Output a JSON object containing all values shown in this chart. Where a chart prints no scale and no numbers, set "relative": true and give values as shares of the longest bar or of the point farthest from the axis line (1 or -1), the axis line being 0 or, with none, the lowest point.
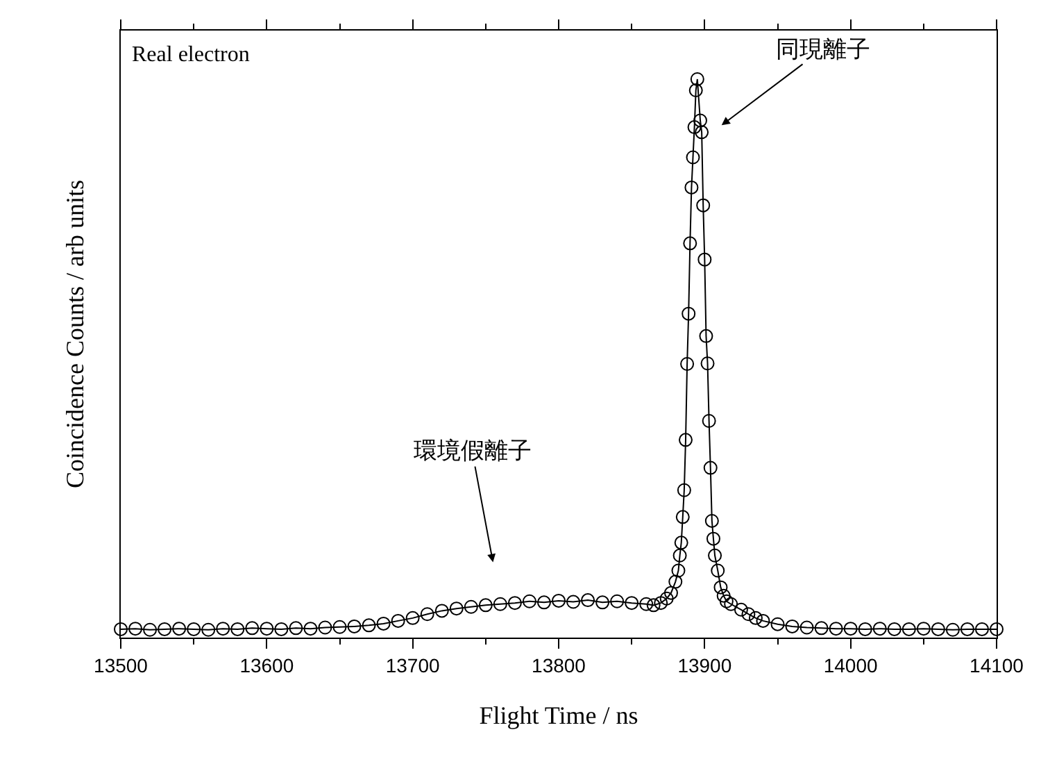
{
  "chart_data": {
    "type": "line",
    "relative": true,
    "xlabel": "Flight Time / ns",
    "ylabel": "Coincidence Counts / arb units",
    "xlim": [
      13500,
      14100
    ],
    "xticks": [
      13500,
      13600,
      13700,
      13800,
      13900,
      14000,
      14100
    ],
    "grid": false,
    "marker": "circle",
    "line_style": "solid",
    "annotations": [
      "Real electron",
      "同現離子",
      "環境假離子"
    ],
    "series": [
      {
        "color": "#000000",
        "x": [
          13500,
          13510,
          13520,
          13530,
          13540,
          13550,
          13560,
          13570,
          13580,
          13590,
          13600,
          13610,
          13620,
          13630,
          13640,
          13650,
          13660,
          13670,
          13680,
          13690,
          13700,
          13710,
          13720,
          13730,
          13740,
          13750,
          13760,
          13770,
          13780,
          13790,
          13800,
          13810,
          13820,
          13830,
          13840,
          13850,
          13860,
          13865,
          13870,
          13874,
          13877,
          13880,
          13882,
          13883,
          13884,
          13885,
          13886,
          13887,
          13888,
          13889,
          13890,
          13891,
          13892,
          13893,
          13894,
          13895,
          13897,
          13898,
          13899,
          13900,
          13901,
          13902,
          13903,
          13904,
          13905,
          13906,
          13907,
          13909,
          13911,
          13913,
          13915,
          13918,
          13925,
          13930,
          13935,
          13940,
          13950,
          13960,
          13970,
          13980,
          13990,
          14000,
          14010,
          14020,
          14030,
          14040,
          14050,
          14060,
          14070,
          14080,
          14090,
          14100
        ],
        "values": [
          0.015,
          0.016,
          0.014,
          0.015,
          0.016,
          0.015,
          0.014,
          0.016,
          0.015,
          0.017,
          0.016,
          0.015,
          0.017,
          0.016,
          0.018,
          0.019,
          0.02,
          0.022,
          0.025,
          0.03,
          0.035,
          0.042,
          0.048,
          0.052,
          0.055,
          0.058,
          0.06,
          0.062,
          0.065,
          0.063,
          0.066,
          0.064,
          0.067,
          0.063,
          0.065,
          0.062,
          0.06,
          0.058,
          0.062,
          0.07,
          0.08,
          0.1,
          0.12,
          0.147,
          0.17,
          0.216,
          0.264,
          0.354,
          0.49,
          0.58,
          0.706,
          0.806,
          0.86,
          0.914,
          0.98,
          1.0,
          0.926,
          0.905,
          0.774,
          0.677,
          0.54,
          0.491,
          0.388,
          0.304,
          0.209,
          0.177,
          0.147,
          0.12,
          0.09,
          0.075,
          0.065,
          0.06,
          0.05,
          0.042,
          0.035,
          0.03,
          0.024,
          0.02,
          0.018,
          0.017,
          0.016,
          0.016,
          0.015,
          0.016,
          0.015,
          0.015,
          0.016,
          0.015,
          0.014,
          0.015,
          0.015,
          0.015
        ]
      }
    ]
  }
}
